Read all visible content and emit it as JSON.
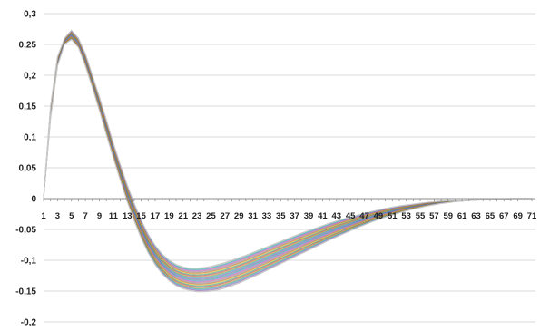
{
  "chart_data": {
    "type": "line",
    "title": "",
    "xlabel": "",
    "ylabel": "",
    "x_range": [
      1,
      71
    ],
    "ylim": [
      -0.2,
      0.3
    ],
    "y_ticks": [
      0.3,
      0.25,
      0.2,
      0.15,
      0.1,
      0.05,
      0,
      -0.05,
      -0.1,
      -0.15,
      -0.2
    ],
    "y_tick_labels": [
      "0,3",
      "0,25",
      "0,2",
      "0,15",
      "0,1",
      "0,05",
      "0",
      "-0,05",
      "-0,1",
      "-0,15",
      "-0,2"
    ],
    "x_tick_labels": [
      "1",
      "3",
      "5",
      "7",
      "9",
      "11",
      "13",
      "15",
      "17",
      "19",
      "21",
      "23",
      "25",
      "27",
      "29",
      "31",
      "33",
      "35",
      "37",
      "39",
      "41",
      "43",
      "45",
      "47",
      "49",
      "51",
      "53",
      "55",
      "57",
      "59",
      "61",
      "63",
      "65",
      "67",
      "69",
      "71"
    ],
    "grid": true,
    "legend": "none",
    "series_count_note": "many overlapping series",
    "envelope": {
      "x": [
        1,
        2,
        3,
        4,
        5,
        6,
        7,
        8,
        9,
        10,
        11,
        12,
        13,
        14,
        15,
        16,
        17,
        18,
        19,
        20,
        21,
        22,
        23,
        24,
        25,
        26,
        27,
        28,
        29,
        30,
        32,
        34,
        36,
        38,
        40,
        42,
        44,
        46,
        48,
        50,
        52,
        54,
        56,
        58,
        60,
        62,
        64,
        66,
        68,
        70,
        71
      ],
      "upper": [
        0,
        0.15,
        0.23,
        0.26,
        0.273,
        0.26,
        0.235,
        0.2,
        0.165,
        0.128,
        0.09,
        0.055,
        0.022,
        -0.008,
        -0.035,
        -0.058,
        -0.076,
        -0.09,
        -0.1,
        -0.107,
        -0.111,
        -0.113,
        -0.113,
        -0.112,
        -0.11,
        -0.107,
        -0.104,
        -0.1,
        -0.096,
        -0.092,
        -0.083,
        -0.074,
        -0.065,
        -0.056,
        -0.048,
        -0.04,
        -0.033,
        -0.027,
        -0.021,
        -0.016,
        -0.012,
        -0.009,
        -0.006,
        -0.004,
        -0.003,
        -0.002,
        -0.001,
        -0.0005,
        0,
        0,
        0
      ],
      "lower": [
        0,
        0.13,
        0.215,
        0.25,
        0.258,
        0.245,
        0.215,
        0.18,
        0.143,
        0.104,
        0.066,
        0.03,
        -0.005,
        -0.036,
        -0.064,
        -0.088,
        -0.107,
        -0.122,
        -0.133,
        -0.141,
        -0.146,
        -0.149,
        -0.151,
        -0.151,
        -0.15,
        -0.148,
        -0.145,
        -0.141,
        -0.137,
        -0.132,
        -0.122,
        -0.111,
        -0.1,
        -0.089,
        -0.078,
        -0.067,
        -0.057,
        -0.047,
        -0.038,
        -0.03,
        -0.023,
        -0.017,
        -0.012,
        -0.008,
        -0.005,
        -0.003,
        -0.002,
        -0.001,
        0,
        0,
        0
      ]
    },
    "series_colors": [
      "#8e44ad",
      "#2e86de",
      "#27ae60",
      "#e67e22",
      "#c0392b",
      "#16a085",
      "#f1c40f",
      "#d35400",
      "#7f8c8d",
      "#e84393",
      "#6c5ce7",
      "#00b894"
    ],
    "band_color": "#d8d8d8"
  }
}
